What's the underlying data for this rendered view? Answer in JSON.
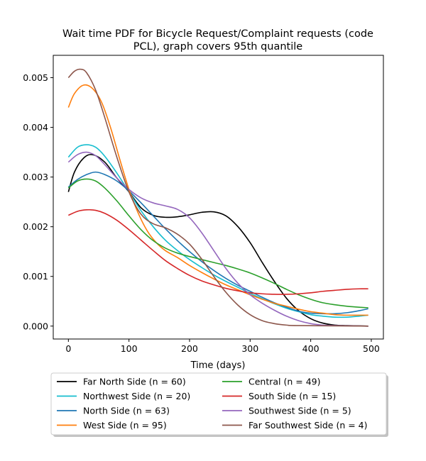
{
  "chart_data": {
    "type": "line",
    "title_lines": [
      "Wait time PDF for Bicycle Request/Complaint  requests (code",
      "PCL), graph covers 95th quantile"
    ],
    "xlabel": "Time (days)",
    "ylabel": "",
    "xlim": [
      -25,
      520
    ],
    "ylim": [
      -0.00026,
      0.00545
    ],
    "x_ticks": [
      0,
      100,
      200,
      300,
      400,
      500
    ],
    "x_tick_labels": [
      "0",
      "100",
      "200",
      "300",
      "400",
      "500"
    ],
    "y_ticks": [
      0.0,
      0.001,
      0.002,
      0.003,
      0.004,
      0.005
    ],
    "y_tick_labels": [
      "0.000",
      "0.001",
      "0.002",
      "0.003",
      "0.004",
      "0.005"
    ],
    "grid": false,
    "legend_position": "below-plot",
    "x_range": [
      0,
      495
    ],
    "series": [
      {
        "name": "Far North Side (n = 60)",
        "color": "#000000",
        "points": [
          [
            0,
            0.0027
          ],
          [
            10,
            0.0031
          ],
          [
            25,
            0.00338
          ],
          [
            40,
            0.00345
          ],
          [
            60,
            0.0033
          ],
          [
            80,
            0.00298
          ],
          [
            100,
            0.0027
          ],
          [
            120,
            0.00238
          ],
          [
            140,
            0.00223
          ],
          [
            160,
            0.00219
          ],
          [
            180,
            0.0022
          ],
          [
            200,
            0.00224
          ],
          [
            220,
            0.00229
          ],
          [
            240,
            0.0023
          ],
          [
            260,
            0.00222
          ],
          [
            280,
            0.002
          ],
          [
            300,
            0.00168
          ],
          [
            320,
            0.00128
          ],
          [
            340,
            0.0009
          ],
          [
            360,
            0.00056
          ],
          [
            380,
            0.00031
          ],
          [
            400,
            0.00015
          ],
          [
            420,
            6e-05
          ],
          [
            440,
            2e-05
          ],
          [
            460,
            1e-05
          ],
          [
            495,
            0.0
          ]
        ]
      },
      {
        "name": "Northwest Side (n = 20)",
        "color": "#17becf",
        "points": [
          [
            0,
            0.0034
          ],
          [
            15,
            0.0036
          ],
          [
            30,
            0.00365
          ],
          [
            45,
            0.0036
          ],
          [
            60,
            0.00342
          ],
          [
            80,
            0.00308
          ],
          [
            100,
            0.0027
          ],
          [
            120,
            0.00232
          ],
          [
            140,
            0.002
          ],
          [
            160,
            0.00173
          ],
          [
            180,
            0.00152
          ],
          [
            200,
            0.00134
          ],
          [
            220,
            0.00118
          ],
          [
            240,
            0.00103
          ],
          [
            260,
            0.0009
          ],
          [
            280,
            0.00078
          ],
          [
            300,
            0.00066
          ],
          [
            320,
            0.00055
          ],
          [
            340,
            0.00045
          ],
          [
            360,
            0.00036
          ],
          [
            380,
            0.00029
          ],
          [
            400,
            0.00023
          ],
          [
            420,
            0.0002
          ],
          [
            440,
            0.00018
          ],
          [
            460,
            0.00018
          ],
          [
            480,
            0.0002
          ],
          [
            495,
            0.00022
          ]
        ]
      },
      {
        "name": "North Side (n = 63)",
        "color": "#1f77b4",
        "points": [
          [
            0,
            0.0028
          ],
          [
            15,
            0.00295
          ],
          [
            30,
            0.00305
          ],
          [
            45,
            0.0031
          ],
          [
            60,
            0.00305
          ],
          [
            80,
            0.00292
          ],
          [
            100,
            0.00272
          ],
          [
            120,
            0.00248
          ],
          [
            140,
            0.00222
          ],
          [
            160,
            0.00196
          ],
          [
            180,
            0.00172
          ],
          [
            200,
            0.0015
          ],
          [
            220,
            0.0013
          ],
          [
            240,
            0.00112
          ],
          [
            260,
            0.00096
          ],
          [
            280,
            0.00082
          ],
          [
            300,
            0.0007
          ],
          [
            320,
            0.00058
          ],
          [
            340,
            0.00047
          ],
          [
            360,
            0.00038
          ],
          [
            380,
            0.0003
          ],
          [
            400,
            0.00026
          ],
          [
            420,
            0.00025
          ],
          [
            440,
            0.00025
          ],
          [
            460,
            0.00027
          ],
          [
            480,
            0.00031
          ],
          [
            495,
            0.00035
          ]
        ]
      },
      {
        "name": "West Side (n = 95)",
        "color": "#ff7f0e",
        "points": [
          [
            0,
            0.0044
          ],
          [
            10,
            0.00468
          ],
          [
            25,
            0.00485
          ],
          [
            40,
            0.00478
          ],
          [
            55,
            0.0045
          ],
          [
            70,
            0.00398
          ],
          [
            85,
            0.00335
          ],
          [
            100,
            0.00275
          ],
          [
            115,
            0.00228
          ],
          [
            130,
            0.00192
          ],
          [
            145,
            0.00168
          ],
          [
            160,
            0.00152
          ],
          [
            180,
            0.00138
          ],
          [
            200,
            0.00122
          ],
          [
            220,
            0.00108
          ],
          [
            240,
            0.00095
          ],
          [
            260,
            0.00083
          ],
          [
            280,
            0.00073
          ],
          [
            300,
            0.00063
          ],
          [
            320,
            0.00054
          ],
          [
            340,
            0.00046
          ],
          [
            360,
            0.0004
          ],
          [
            380,
            0.00034
          ],
          [
            400,
            0.00029
          ],
          [
            420,
            0.00026
          ],
          [
            440,
            0.00023
          ],
          [
            460,
            0.00022
          ],
          [
            480,
            0.00022
          ],
          [
            495,
            0.00022
          ]
        ]
      },
      {
        "name": "Central (n = 49)",
        "color": "#2ca02c",
        "points": [
          [
            0,
            0.00278
          ],
          [
            15,
            0.00292
          ],
          [
            30,
            0.00296
          ],
          [
            45,
            0.00292
          ],
          [
            60,
            0.00278
          ],
          [
            80,
            0.00252
          ],
          [
            100,
            0.00222
          ],
          [
            120,
            0.00194
          ],
          [
            140,
            0.00172
          ],
          [
            160,
            0.00157
          ],
          [
            180,
            0.00147
          ],
          [
            200,
            0.0014
          ],
          [
            220,
            0.00134
          ],
          [
            240,
            0.00128
          ],
          [
            260,
            0.00122
          ],
          [
            280,
            0.00115
          ],
          [
            300,
            0.00107
          ],
          [
            320,
            0.00097
          ],
          [
            340,
            0.00086
          ],
          [
            360,
            0.00074
          ],
          [
            380,
            0.00063
          ],
          [
            400,
            0.00054
          ],
          [
            420,
            0.00047
          ],
          [
            440,
            0.00043
          ],
          [
            460,
            0.0004
          ],
          [
            480,
            0.00038
          ],
          [
            495,
            0.00037
          ]
        ]
      },
      {
        "name": "South Side (n = 15)",
        "color": "#d62728",
        "points": [
          [
            0,
            0.00223
          ],
          [
            15,
            0.00231
          ],
          [
            30,
            0.00234
          ],
          [
            45,
            0.00233
          ],
          [
            60,
            0.00227
          ],
          [
            80,
            0.00213
          ],
          [
            100,
            0.00194
          ],
          [
            120,
            0.00173
          ],
          [
            140,
            0.00152
          ],
          [
            160,
            0.00132
          ],
          [
            180,
            0.00116
          ],
          [
            200,
            0.00102
          ],
          [
            220,
            0.00091
          ],
          [
            240,
            0.00083
          ],
          [
            260,
            0.00076
          ],
          [
            280,
            0.00071
          ],
          [
            300,
            0.00067
          ],
          [
            320,
            0.00065
          ],
          [
            340,
            0.00064
          ],
          [
            360,
            0.00064
          ],
          [
            380,
            0.00065
          ],
          [
            400,
            0.00067
          ],
          [
            420,
            0.0007
          ],
          [
            440,
            0.00072
          ],
          [
            460,
            0.00074
          ],
          [
            480,
            0.00075
          ],
          [
            495,
            0.00075
          ]
        ]
      },
      {
        "name": "Southwest Side (n = 5)",
        "color": "#9467bd",
        "points": [
          [
            0,
            0.0033
          ],
          [
            15,
            0.00345
          ],
          [
            30,
            0.0035
          ],
          [
            45,
            0.00343
          ],
          [
            60,
            0.00325
          ],
          [
            80,
            0.00298
          ],
          [
            100,
            0.00275
          ],
          [
            120,
            0.00258
          ],
          [
            140,
            0.00248
          ],
          [
            160,
            0.00242
          ],
          [
            180,
            0.00235
          ],
          [
            200,
            0.00218
          ],
          [
            220,
            0.00188
          ],
          [
            240,
            0.00152
          ],
          [
            260,
            0.00116
          ],
          [
            280,
            0.00086
          ],
          [
            300,
            0.00063
          ],
          [
            320,
            0.00046
          ],
          [
            340,
            0.00032
          ],
          [
            360,
            0.0002
          ],
          [
            380,
            0.00011
          ],
          [
            400,
            5e-05
          ],
          [
            420,
            2e-05
          ],
          [
            440,
            1e-05
          ],
          [
            495,
            0.0
          ]
        ]
      },
      {
        "name": "Far Southwest Side (n = 4)",
        "color": "#8c564b",
        "points": [
          [
            0,
            0.005
          ],
          [
            10,
            0.00513
          ],
          [
            20,
            0.00517
          ],
          [
            30,
            0.0051
          ],
          [
            45,
            0.00475
          ],
          [
            60,
            0.0042
          ],
          [
            80,
            0.0034
          ],
          [
            100,
            0.0027
          ],
          [
            120,
            0.00225
          ],
          [
            140,
            0.00206
          ],
          [
            160,
            0.00198
          ],
          [
            180,
            0.00185
          ],
          [
            200,
            0.00165
          ],
          [
            220,
            0.00135
          ],
          [
            240,
            0.001
          ],
          [
            260,
            0.00068
          ],
          [
            280,
            0.00042
          ],
          [
            300,
            0.00023
          ],
          [
            320,
            0.00011
          ],
          [
            340,
            5e-05
          ],
          [
            360,
            2e-05
          ],
          [
            380,
            1e-05
          ],
          [
            495,
            0.0
          ]
        ]
      }
    ]
  }
}
